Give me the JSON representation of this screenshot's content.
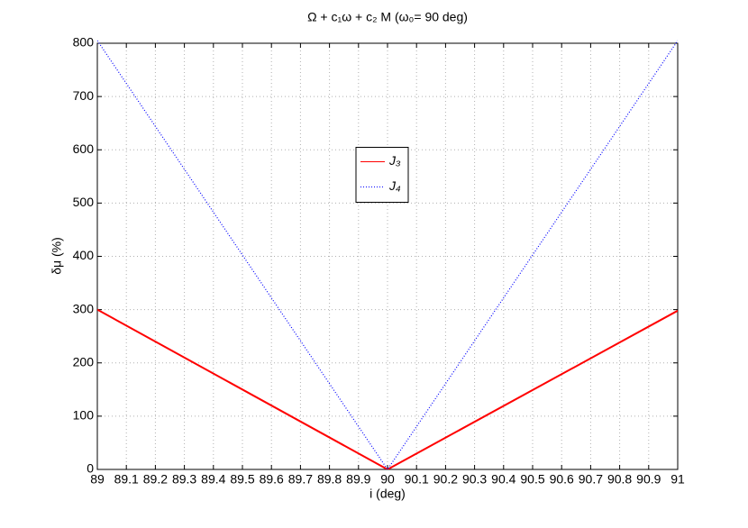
{
  "chart_data": {
    "type": "line",
    "title": "Ω + c₁ω + c₂ M  (ω₀= 90 deg)",
    "x_label": "i (deg)",
    "y_label": "δμ (%)",
    "x": [
      89,
      90,
      91
    ],
    "series": [
      {
        "name": "J₃",
        "color": "#ff0000",
        "style": "solid",
        "values": [
          300,
          0,
          298
        ]
      },
      {
        "name": "J₄",
        "color": "#0000ff",
        "style": "dotted",
        "values": [
          805,
          0,
          805
        ]
      }
    ],
    "xlim": [
      89,
      91
    ],
    "ylim": [
      0,
      800
    ],
    "xticks": [
      89,
      89.1,
      89.2,
      89.3,
      89.4,
      89.5,
      89.6,
      89.7,
      89.8,
      89.9,
      90,
      90.1,
      90.2,
      90.3,
      90.4,
      90.5,
      90.6,
      90.7,
      90.8,
      90.9,
      91
    ],
    "yticks": [
      0,
      100,
      200,
      300,
      400,
      500,
      600,
      700,
      800
    ],
    "grid": true,
    "legend_position": "center"
  }
}
